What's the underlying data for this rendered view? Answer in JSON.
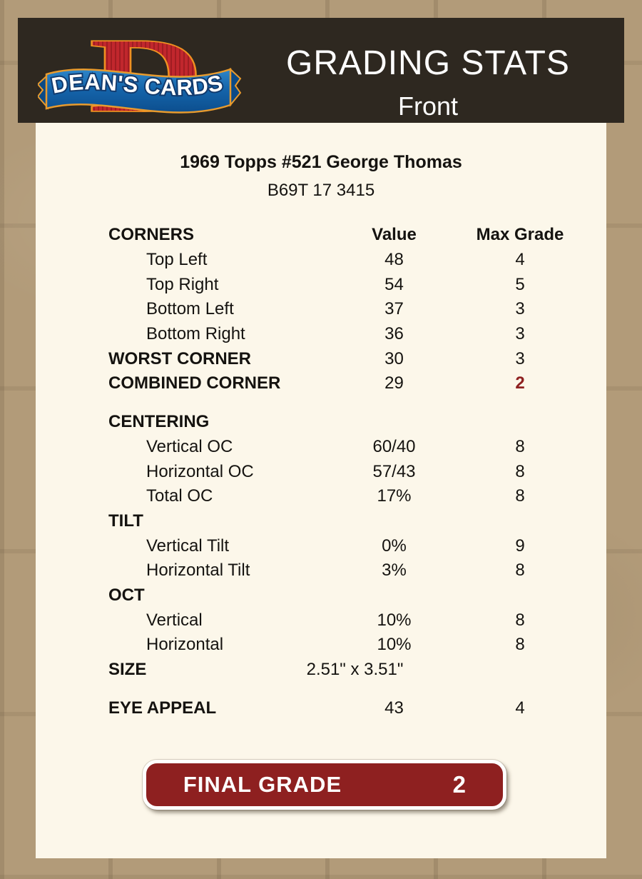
{
  "header": {
    "title": "GRADING STATS",
    "subtitle": "Front",
    "logo": {
      "brand": "DEAN'S CARDS",
      "letter": "D"
    }
  },
  "card": {
    "title": "1969 Topps #521 George Thomas",
    "serial": "B69T 17 3415"
  },
  "table": {
    "columns": [
      "Value",
      "Max Grade"
    ],
    "rows": [
      {
        "label": "CORNERS",
        "value": "Value",
        "max": "Max Grade",
        "header": true,
        "bold": true
      },
      {
        "label": "Top Left",
        "value": "48",
        "max": "4",
        "indent": true
      },
      {
        "label": "Top Right",
        "value": "54",
        "max": "5",
        "indent": true
      },
      {
        "label": "Bottom Left",
        "value": "37",
        "max": "3",
        "indent": true
      },
      {
        "label": "Bottom Right",
        "value": "36",
        "max": "3",
        "indent": true
      },
      {
        "label": "WORST CORNER",
        "value": "30",
        "max": "3",
        "bold": true
      },
      {
        "label": "COMBINED CORNER",
        "value": "29",
        "max": "2",
        "bold": true,
        "maxRed": true
      },
      {
        "label": "CENTERING",
        "value": "",
        "max": "",
        "bold": true,
        "gapBefore": true
      },
      {
        "label": "Vertical OC",
        "value": "60/40",
        "max": "8",
        "indent": true
      },
      {
        "label": "Horizontal OC",
        "value": "57/43",
        "max": "8",
        "indent": true
      },
      {
        "label": "Total OC",
        "value": "17%",
        "max": "8",
        "indent": true
      },
      {
        "label": "TILT",
        "value": "",
        "max": "",
        "bold": true
      },
      {
        "label": "Vertical Tilt",
        "value": "0%",
        "max": "9",
        "indent": true
      },
      {
        "label": "Horizontal Tilt",
        "value": "3%",
        "max": "8",
        "indent": true
      },
      {
        "label": "OCT",
        "value": "",
        "max": "",
        "bold": true
      },
      {
        "label": "Vertical",
        "value": "10%",
        "max": "8",
        "indent": true
      },
      {
        "label": "Horizontal",
        "value": "10%",
        "max": "8",
        "indent": true
      },
      {
        "label": "SIZE",
        "value": "2.51\" x 3.51\"",
        "max": "",
        "bold": true,
        "valueShift": true
      },
      {
        "label": "EYE APPEAL",
        "value": "43",
        "max": "4",
        "bold": true,
        "gapBefore": true
      }
    ]
  },
  "final_grade": {
    "label": "FINAL GRADE",
    "value": "2"
  },
  "colors": {
    "page_bg": "#b29b79",
    "header_bg": "#2e2820",
    "panel_bg": "#fcf7ea",
    "maroon": "#8e2020",
    "grade_red": "#8e2020",
    "logo_red": "#c1272d",
    "logo_gold": "#ef9021",
    "logo_blue": "#1565ab"
  }
}
